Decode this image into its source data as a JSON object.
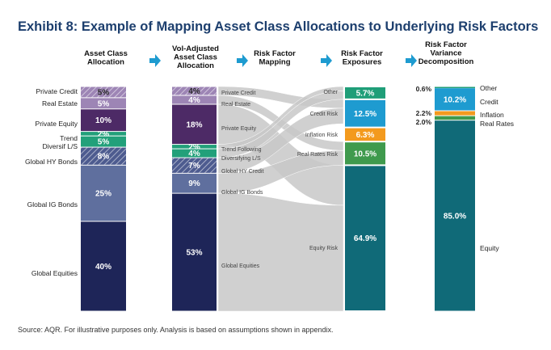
{
  "title": "Exhibit 8: Example of Mapping Asset Class Allocations to Underlying Risk Factors",
  "source": "Source: AQR. For illustrative purposes only. Analysis is based on assumptions shown in appendix.",
  "colors": {
    "private_credit": "#9d85b5",
    "real_estate": "#9d85b5",
    "private_equity": "#4d2a66",
    "trend": "#22a07a",
    "diversif": "#22a07a",
    "hy": "#4d5b8f",
    "ig": "#5f6f9e",
    "equities": "#1e2558",
    "other": "#1f9e78",
    "credit_risk": "#1e9bd0",
    "inflation": "#f39a1e",
    "real_rates": "#3f9a4d",
    "equity_risk": "#106a78",
    "flow": "#c8c8c8",
    "arrow": "#1e9bd0"
  },
  "chart_data": [
    {
      "type": "bar",
      "subtype": "stacked-100",
      "title": "Asset Class Allocation",
      "categories": [
        "Private Credit",
        "Real Estate",
        "Private Equity",
        "Trend",
        "Diversif L/S",
        "Global HY Bonds",
        "Global IG Bonds",
        "Global Equities"
      ],
      "values": [
        5,
        5,
        10,
        2,
        5,
        8,
        25,
        40
      ],
      "value_labels": [
        "5%",
        "5%",
        "10%",
        "2%",
        "5%",
        "8%",
        "25%",
        "40%"
      ]
    },
    {
      "type": "bar",
      "subtype": "stacked-100",
      "title": "Vol-Adjusted Asset Class Allocation",
      "categories": [
        "Private Credit",
        "Real Estate",
        "Private Equity",
        "Trend Following",
        "Diversifying L/S",
        "Global HY Credit",
        "Global IG Bonds",
        "Global Equities"
      ],
      "values": [
        4,
        4,
        18,
        2,
        4,
        7,
        9,
        53
      ],
      "value_labels": [
        "4%",
        "4%",
        "18%",
        "2%",
        "4%",
        "7%",
        "9%",
        "53%"
      ]
    },
    {
      "type": "sankey",
      "title": "Risk Factor Mapping",
      "sources": [
        "Private Credit",
        "Real Estate",
        "Private Equity",
        "Trend Following",
        "Diversifying L/S",
        "Global HY Credit",
        "Global IG Bonds",
        "Global Equities"
      ],
      "targets": [
        "Other",
        "Credit Risk",
        "Inflation Risk",
        "Real Rates Risk",
        "Equity Risk"
      ]
    },
    {
      "type": "bar",
      "subtype": "stacked-100",
      "title": "Risk Factor Exposures",
      "categories": [
        "Other",
        "Credit Risk",
        "Inflation Risk",
        "Real Rates Risk",
        "Equity Risk"
      ],
      "values": [
        5.7,
        12.5,
        6.3,
        10.5,
        64.9
      ],
      "value_labels": [
        "5.7%",
        "12.5%",
        "6.3%",
        "10.5%",
        "64.9%"
      ]
    },
    {
      "type": "bar",
      "subtype": "stacked-100",
      "title": "Risk Factor Variance Decomposition",
      "categories": [
        "Other",
        "Credit",
        "Inflation",
        "Real Rates",
        "Equity"
      ],
      "values": [
        0.6,
        10.2,
        2.2,
        2.0,
        85.0
      ],
      "value_labels": [
        "0.6%",
        "10.2%",
        "2.2%",
        "2.0%",
        "85.0%"
      ]
    }
  ]
}
